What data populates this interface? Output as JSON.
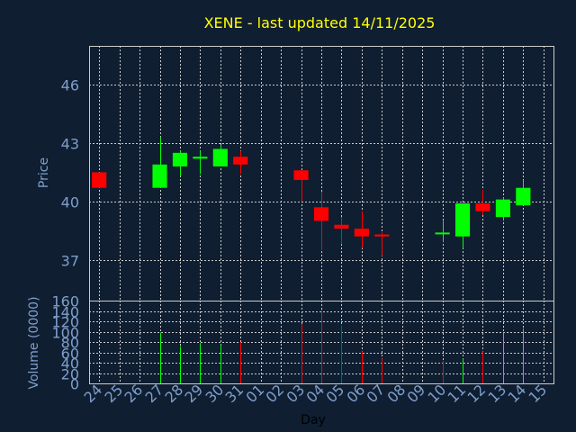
{
  "chart_data": [
    {
      "type": "candlestick",
      "title": "XENE - last updated 14/11/2025",
      "ylabel": "Price",
      "ylim": [
        34.9,
        48.0
      ],
      "yticks": [
        37,
        40,
        43,
        46
      ],
      "grid": true,
      "up_color": "#00ff00",
      "down_color": "#ff0000",
      "categories": [
        "24",
        "25",
        "26",
        "27",
        "28",
        "29",
        "30",
        "31",
        "01",
        "02",
        "03",
        "04",
        "05",
        "06",
        "07",
        "08",
        "09",
        "10",
        "11",
        "12",
        "13",
        "14",
        "15"
      ],
      "candles": [
        {
          "x": "24",
          "open": 41.5,
          "high": 41.5,
          "low": 40.7,
          "close": 40.7
        },
        {
          "x": "27",
          "open": 40.7,
          "high": 43.3,
          "low": 40.7,
          "close": 41.9
        },
        {
          "x": "28",
          "open": 41.8,
          "high": 42.6,
          "low": 41.3,
          "close": 42.5
        },
        {
          "x": "29",
          "open": 42.2,
          "high": 42.6,
          "low": 41.4,
          "close": 42.3
        },
        {
          "x": "30",
          "open": 41.8,
          "high": 42.9,
          "low": 41.8,
          "close": 42.7
        },
        {
          "x": "31",
          "open": 42.3,
          "high": 42.6,
          "low": 41.4,
          "close": 41.9
        },
        {
          "x": "03",
          "open": 41.6,
          "high": 41.6,
          "low": 40.0,
          "close": 41.1
        },
        {
          "x": "04",
          "open": 39.7,
          "high": 40.5,
          "low": 37.5,
          "close": 39.0
        },
        {
          "x": "05",
          "open": 38.8,
          "high": 39.2,
          "low": 37.8,
          "close": 38.6
        },
        {
          "x": "06",
          "open": 38.6,
          "high": 39.5,
          "low": 37.6,
          "close": 38.2
        },
        {
          "x": "07",
          "open": 38.3,
          "high": 38.4,
          "low": 37.2,
          "close": 38.2
        },
        {
          "x": "10",
          "open": 38.4,
          "high": 39.0,
          "low": 37.9,
          "close": 38.4
        },
        {
          "x": "11",
          "open": 38.2,
          "high": 39.9,
          "low": 37.6,
          "close": 39.9
        },
        {
          "x": "12",
          "open": 39.9,
          "high": 40.6,
          "low": 39.3,
          "close": 39.5
        },
        {
          "x": "13",
          "open": 39.2,
          "high": 40.2,
          "low": 39.0,
          "close": 40.1
        },
        {
          "x": "14",
          "open": 39.8,
          "high": 41.1,
          "low": 39.8,
          "close": 40.7
        }
      ]
    },
    {
      "type": "bar",
      "ylabel": "Volume (0000)",
      "xlabel": "Day",
      "ylim": [
        0,
        160
      ],
      "yticks": [
        0,
        20,
        40,
        60,
        80,
        100,
        120,
        140,
        160
      ],
      "grid": true,
      "bars": [
        {
          "x": "27",
          "value": 98,
          "color": "#00ff00"
        },
        {
          "x": "28",
          "value": 72,
          "color": "#00ff00"
        },
        {
          "x": "29",
          "value": 78,
          "color": "#00ff00"
        },
        {
          "x": "30",
          "value": 75,
          "color": "#00ff00"
        },
        {
          "x": "31",
          "value": 80,
          "color": "#ff0000"
        },
        {
          "x": "03",
          "value": 115,
          "color": "#ff0000"
        },
        {
          "x": "04",
          "value": 142,
          "color": "#ff0000"
        },
        {
          "x": "05",
          "value": 112,
          "color": "#ff0000"
        },
        {
          "x": "06",
          "value": 62,
          "color": "#ff0000"
        },
        {
          "x": "07",
          "value": 48,
          "color": "#ff0000"
        },
        {
          "x": "10",
          "value": 44,
          "color": "#ff0000"
        },
        {
          "x": "11",
          "value": 48,
          "color": "#00ff00"
        },
        {
          "x": "12",
          "value": 62,
          "color": "#ff0000"
        },
        {
          "x": "13",
          "value": 98,
          "color": "#00ff00"
        },
        {
          "x": "14",
          "value": 106,
          "color": "#00ff00"
        }
      ]
    }
  ]
}
